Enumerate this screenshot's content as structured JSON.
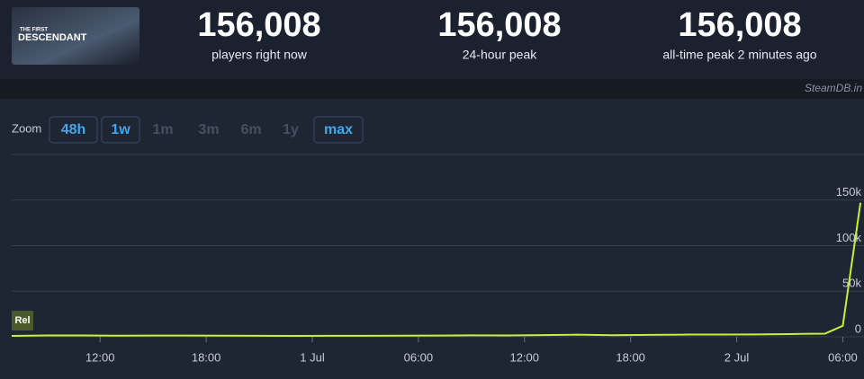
{
  "header": {
    "logo": {
      "line1": "THE FIRST",
      "line2": "DESCENDANT"
    },
    "stats": [
      {
        "value": "156,008",
        "label": "players right now"
      },
      {
        "value": "156,008",
        "label": "24-hour peak"
      },
      {
        "value": "156,008",
        "label": "all-time peak 2 minutes ago"
      }
    ],
    "source": "SteamDB.in"
  },
  "zoom": {
    "label": "Zoom",
    "buttons": [
      {
        "label": "48h",
        "active": true
      },
      {
        "label": "1w",
        "active": true
      },
      {
        "label": "1m",
        "active": false
      },
      {
        "label": "3m",
        "active": false
      },
      {
        "label": "6m",
        "active": false
      },
      {
        "label": "1y",
        "active": false
      },
      {
        "label": "max",
        "active": true
      }
    ]
  },
  "chart_data": {
    "type": "line",
    "annotation": "Rel",
    "x": [
      -17,
      -15,
      -13,
      -11,
      -9,
      -7,
      -5,
      -3,
      -1,
      1,
      3,
      5,
      7,
      9,
      11,
      13,
      15,
      17,
      19,
      21,
      23,
      25,
      27,
      29,
      30,
      31
    ],
    "series": [
      {
        "name": "Players",
        "color": "#c8f03a",
        "values": [
          1000,
          1500,
          1500,
          1200,
          1400,
          1300,
          1200,
          1100,
          1000,
          1100,
          1100,
          1200,
          1300,
          1600,
          1500,
          1900,
          2300,
          1700,
          2100,
          2400,
          2500,
          2600,
          3000,
          3500,
          12000,
          147000
        ]
      }
    ],
    "xlim": [
      -17,
      31.2
    ],
    "xticks": [
      {
        "value": -12,
        "label": "12:00"
      },
      {
        "value": -6,
        "label": "18:00"
      },
      {
        "value": 0,
        "label": "1 Jul"
      },
      {
        "value": 6,
        "label": "06:00"
      },
      {
        "value": 12,
        "label": "12:00"
      },
      {
        "value": 18,
        "label": "18:00"
      },
      {
        "value": 24,
        "label": "2 Jul"
      },
      {
        "value": 30,
        "label": "06:00"
      }
    ],
    "ylim": [
      0,
      200000
    ],
    "yticks": [
      0,
      {
        "value": 50000,
        "label": "50k"
      },
      {
        "value": 100000,
        "label": "100k"
      },
      {
        "value": 150000,
        "label": "150k"
      }
    ],
    "grid": true
  }
}
